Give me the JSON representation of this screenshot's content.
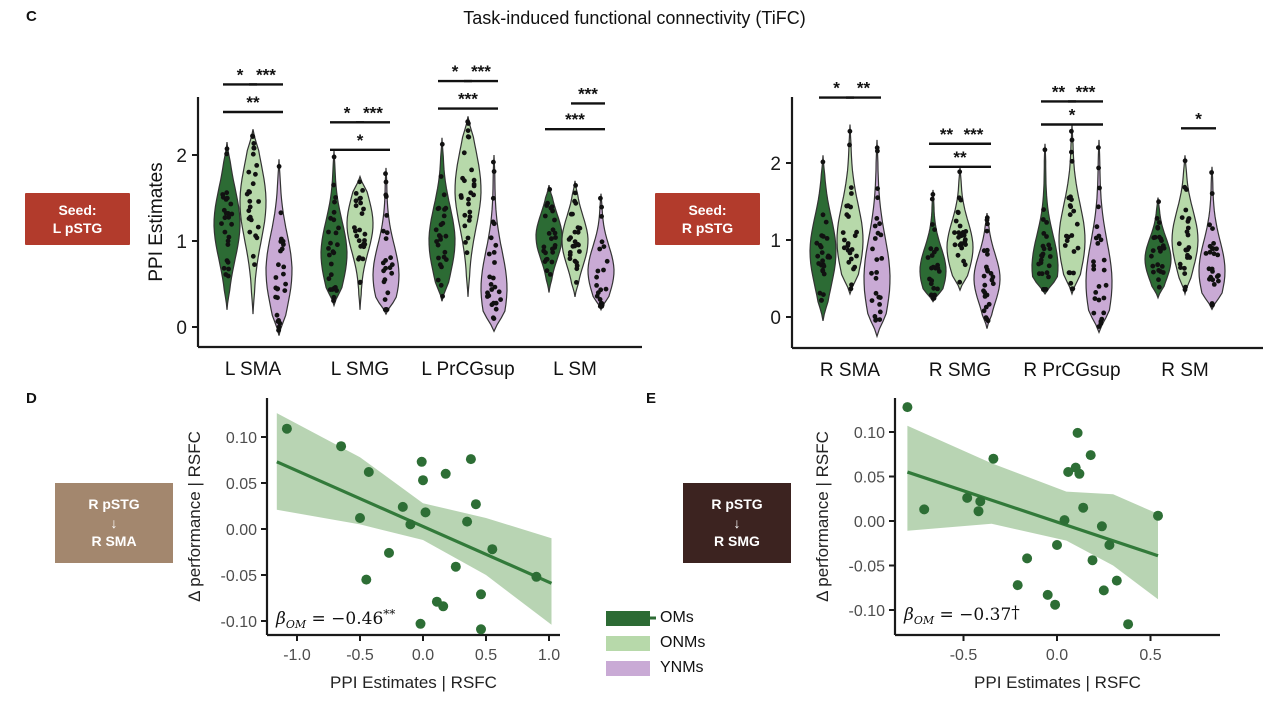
{
  "title": "Task-induced functional connectivity (TiFC)",
  "panels": {
    "c": {
      "label": "C",
      "seed_left": [
        "Seed:",
        "L pSTG"
      ],
      "seed_right": [
        "Seed:",
        "R pSTG"
      ]
    },
    "d": {
      "label": "D",
      "box": [
        "R pSTG",
        "↓",
        "R SMA"
      ]
    },
    "e": {
      "label": "E",
      "box": [
        "R pSTG",
        "↓",
        "R SMG"
      ]
    }
  },
  "legend": {
    "items": [
      {
        "label": "OMs",
        "color": "#2c6b34",
        "marker": "line-dot"
      },
      {
        "label": "ONMs",
        "color": "#b7d9aa",
        "marker": "swatch"
      },
      {
        "label": "YNMs",
        "color": "#c9aad5",
        "marker": "swatch"
      }
    ]
  },
  "colors": {
    "om": "#2c6b34",
    "onm": "#b7d9aa",
    "ynm": "#c9aad5",
    "violin_stroke": "#333333",
    "point": "#111111",
    "scatter_point": "#2d6e35",
    "regression_line": "#327a3a",
    "ci_band": "#a6c9a0",
    "seed_box": "#b23b2c",
    "box_d": "#a3876e",
    "box_e": "#3c2320",
    "axis": "#1a1a1a",
    "tick_text": "#4d4d4d",
    "violin_tick_text": "#1a1a1a"
  },
  "chart_data": [
    {
      "id": "tifc_left",
      "type": "violin",
      "seed": "L pSTG",
      "ylabel": "PPI Estimates",
      "ylim": [
        -0.35,
        3.1
      ],
      "ytick_values": [
        0,
        1,
        2
      ],
      "ytick_labels": [
        "0",
        "1",
        "2"
      ],
      "categories": [
        "L SMA",
        "L SMG",
        "L PrCGsup",
        "L SM"
      ],
      "groups": [
        "OMs",
        "ONMs",
        "YNMs"
      ],
      "violins": [
        [
          {
            "min": 0.2,
            "max": 2.15,
            "mode": 1.2
          },
          {
            "min": 0.15,
            "max": 2.3,
            "mode": 1.45
          },
          {
            "min": -0.1,
            "max": 1.95,
            "mode": 0.65
          }
        ],
        [
          {
            "min": 0.25,
            "max": 2.05,
            "mode": 0.85
          },
          {
            "min": 0.2,
            "max": 1.75,
            "mode": 1.2
          },
          {
            "min": 0.15,
            "max": 1.85,
            "mode": 0.6
          }
        ],
        [
          {
            "min": 0.3,
            "max": 2.2,
            "mode": 1.0
          },
          {
            "min": 0.35,
            "max": 2.45,
            "mode": 1.6
          },
          {
            "min": -0.05,
            "max": 2.0,
            "mode": 0.45
          }
        ],
        [
          {
            "min": 0.4,
            "max": 1.65,
            "mode": 1.05
          },
          {
            "min": 0.35,
            "max": 1.7,
            "mode": 1.0
          },
          {
            "min": 0.2,
            "max": 1.55,
            "mode": 0.65
          }
        ]
      ],
      "significance": [
        {
          "category": "L SMA",
          "pairs": [
            {
              "a": 0,
              "b": 1,
              "label": "*",
              "y": 2.82
            },
            {
              "a": 1,
              "b": 2,
              "label": "***",
              "y": 2.82
            },
            {
              "a": 0,
              "b": 2,
              "label": "**",
              "y": 2.5
            }
          ]
        },
        {
          "category": "L SMG",
          "pairs": [
            {
              "a": 0,
              "b": 1,
              "label": "*",
              "y": 2.38
            },
            {
              "a": 1,
              "b": 2,
              "label": "***",
              "y": 2.38
            },
            {
              "a": 0,
              "b": 2,
              "label": "*",
              "y": 2.06
            }
          ]
        },
        {
          "category": "L PrCGsup",
          "pairs": [
            {
              "a": 0,
              "b": 1,
              "label": "*",
              "y": 2.86
            },
            {
              "a": 1,
              "b": 2,
              "label": "***",
              "y": 2.86
            },
            {
              "a": 0,
              "b": 2,
              "label": "***",
              "y": 2.54
            }
          ]
        },
        {
          "category": "L SM",
          "pairs": [
            {
              "a": 1,
              "b": 2,
              "label": "***",
              "y": 2.6
            },
            {
              "a": 0,
              "b": 2,
              "label": "***",
              "y": 2.3
            }
          ]
        }
      ]
    },
    {
      "id": "tifc_right",
      "type": "violin",
      "seed": "R pSTG",
      "ylabel": "",
      "ylim": [
        -0.35,
        3.1
      ],
      "ytick_values": [
        0,
        1,
        2
      ],
      "ytick_labels": [
        "0",
        "1",
        "2"
      ],
      "categories": [
        "R SMA",
        "R SMG",
        "R PrCGsup",
        "R SM"
      ],
      "groups": [
        "OMs",
        "ONMs",
        "YNMs"
      ],
      "violins": [
        [
          {
            "min": -0.05,
            "max": 2.1,
            "mode": 0.85
          },
          {
            "min": 0.3,
            "max": 2.5,
            "mode": 1.0
          },
          {
            "min": -0.25,
            "max": 2.3,
            "mode": 0.5
          }
        ],
        [
          {
            "min": 0.2,
            "max": 1.65,
            "mode": 0.6
          },
          {
            "min": 0.35,
            "max": 1.95,
            "mode": 0.9
          },
          {
            "min": -0.15,
            "max": 1.35,
            "mode": 0.5
          }
        ],
        [
          {
            "min": 0.3,
            "max": 2.25,
            "mode": 0.65
          },
          {
            "min": 0.3,
            "max": 2.5,
            "mode": 1.0
          },
          {
            "min": -0.2,
            "max": 2.3,
            "mode": 0.45
          }
        ],
        [
          {
            "min": 0.25,
            "max": 1.55,
            "mode": 0.75
          },
          {
            "min": 0.3,
            "max": 2.1,
            "mode": 1.0
          },
          {
            "min": 0.1,
            "max": 1.95,
            "mode": 0.6
          }
        ]
      ],
      "significance": [
        {
          "category": "R SMA",
          "pairs": [
            {
              "a": 0,
              "b": 1,
              "label": "*",
              "y": 2.85
            },
            {
              "a": 1,
              "b": 2,
              "label": "**",
              "y": 2.85
            }
          ]
        },
        {
          "category": "R SMG",
          "pairs": [
            {
              "a": 0,
              "b": 1,
              "label": "**",
              "y": 2.25
            },
            {
              "a": 1,
              "b": 2,
              "label": "***",
              "y": 2.25
            },
            {
              "a": 0,
              "b": 2,
              "label": "**",
              "y": 1.95
            }
          ]
        },
        {
          "category": "R PrCGsup",
          "pairs": [
            {
              "a": 0,
              "b": 1,
              "label": "**",
              "y": 2.8
            },
            {
              "a": 1,
              "b": 2,
              "label": "***",
              "y": 2.8
            },
            {
              "a": 0,
              "b": 2,
              "label": "*",
              "y": 2.5
            }
          ]
        },
        {
          "category": "R SM",
          "pairs": [
            {
              "a": 1,
              "b": 2,
              "label": "*",
              "y": 2.45
            }
          ]
        }
      ]
    },
    {
      "id": "scatter_d",
      "type": "scatter",
      "xlabel": "PPI Estimates | RSFC",
      "ylabel": "Δ performance | RSFC",
      "xlim": [
        -1.28,
        1.1
      ],
      "ylim": [
        -0.125,
        0.138
      ],
      "xtick_values": [
        -1.0,
        -0.5,
        0.0,
        0.5,
        1.0
      ],
      "xtick_labels": [
        "-1.0",
        "-0.5",
        "0.0",
        "0.5",
        "1.0"
      ],
      "ytick_values": [
        0.1,
        0.05,
        0.0,
        -0.05,
        -0.1
      ],
      "ytick_labels": [
        "0.10",
        "0.05",
        "0.00",
        "-0.05",
        "-0.10"
      ],
      "points": [
        [
          -1.08,
          0.109
        ],
        [
          -0.65,
          0.09
        ],
        [
          -0.43,
          0.062
        ],
        [
          -0.01,
          0.073
        ],
        [
          0.0,
          0.053
        ],
        [
          0.18,
          0.06
        ],
        [
          0.38,
          0.076
        ],
        [
          -0.5,
          0.012
        ],
        [
          -0.16,
          0.024
        ],
        [
          -0.1,
          0.005
        ],
        [
          0.02,
          0.018
        ],
        [
          0.35,
          0.008
        ],
        [
          0.42,
          0.027
        ],
        [
          -0.27,
          -0.026
        ],
        [
          0.26,
          -0.041
        ],
        [
          0.55,
          -0.022
        ],
        [
          0.9,
          -0.052
        ],
        [
          -0.45,
          -0.055
        ],
        [
          0.46,
          -0.071
        ],
        [
          0.11,
          -0.079
        ],
        [
          0.16,
          -0.084
        ],
        [
          -0.02,
          -0.103
        ],
        [
          0.46,
          -0.109
        ]
      ],
      "regression": {
        "x1": -1.16,
        "y1": 0.073,
        "x2": 1.02,
        "y2": -0.059
      },
      "ci_band": [
        [
          -1.16,
          0.021,
          0.126
        ],
        [
          -0.5,
          0.005,
          0.078
        ],
        [
          0.0,
          -0.012,
          0.028
        ],
        [
          0.5,
          -0.05,
          0.012
        ],
        [
          1.02,
          -0.104,
          -0.01
        ]
      ],
      "annotation": {
        "symbol": "β",
        "subscript": "OM",
        "text": " = −0.46",
        "mark": "**"
      }
    },
    {
      "id": "scatter_e",
      "type": "scatter",
      "xlabel": "PPI Estimates | RSFC",
      "ylabel": "Δ performance | RSFC",
      "xlim": [
        -0.88,
        0.62
      ],
      "ylim": [
        -0.13,
        0.14
      ],
      "xtick_values": [
        -0.5,
        0.0,
        0.5
      ],
      "xtick_labels": [
        "-0.5",
        "0.0",
        "0.5"
      ],
      "ytick_values": [
        0.1,
        0.05,
        0.0,
        -0.05,
        -0.1
      ],
      "ytick_labels": [
        "0.10",
        "0.05",
        "0.00",
        "-0.05",
        "-0.10"
      ],
      "points": [
        [
          -0.8,
          0.128
        ],
        [
          -0.34,
          0.07
        ],
        [
          0.11,
          0.099
        ],
        [
          0.18,
          0.074
        ],
        [
          0.06,
          0.055
        ],
        [
          0.1,
          0.06
        ],
        [
          0.12,
          0.053
        ],
        [
          -0.71,
          0.013
        ],
        [
          -0.48,
          0.026
        ],
        [
          -0.42,
          0.011
        ],
        [
          -0.41,
          0.022
        ],
        [
          0.14,
          0.015
        ],
        [
          0.04,
          0.001
        ],
        [
          0.24,
          -0.006
        ],
        [
          0.28,
          -0.027
        ],
        [
          0.0,
          -0.027
        ],
        [
          -0.16,
          -0.042
        ],
        [
          0.19,
          -0.044
        ],
        [
          -0.21,
          -0.072
        ],
        [
          0.32,
          -0.067
        ],
        [
          0.25,
          -0.078
        ],
        [
          -0.05,
          -0.083
        ],
        [
          -0.01,
          -0.094
        ],
        [
          0.38,
          -0.116
        ],
        [
          0.54,
          0.006
        ]
      ],
      "regression": {
        "x1": -0.8,
        "y1": 0.055,
        "x2": 0.54,
        "y2": -0.039
      },
      "ci_band": [
        [
          -0.8,
          -0.011,
          0.107
        ],
        [
          -0.35,
          -0.003,
          0.065
        ],
        [
          0.05,
          -0.022,
          0.033
        ],
        [
          0.3,
          -0.05,
          0.03
        ],
        [
          0.54,
          -0.088,
          0.008
        ]
      ],
      "annotation": {
        "symbol": "β",
        "subscript": "OM",
        "text": " = −0.37",
        "mark": "†"
      }
    }
  ]
}
